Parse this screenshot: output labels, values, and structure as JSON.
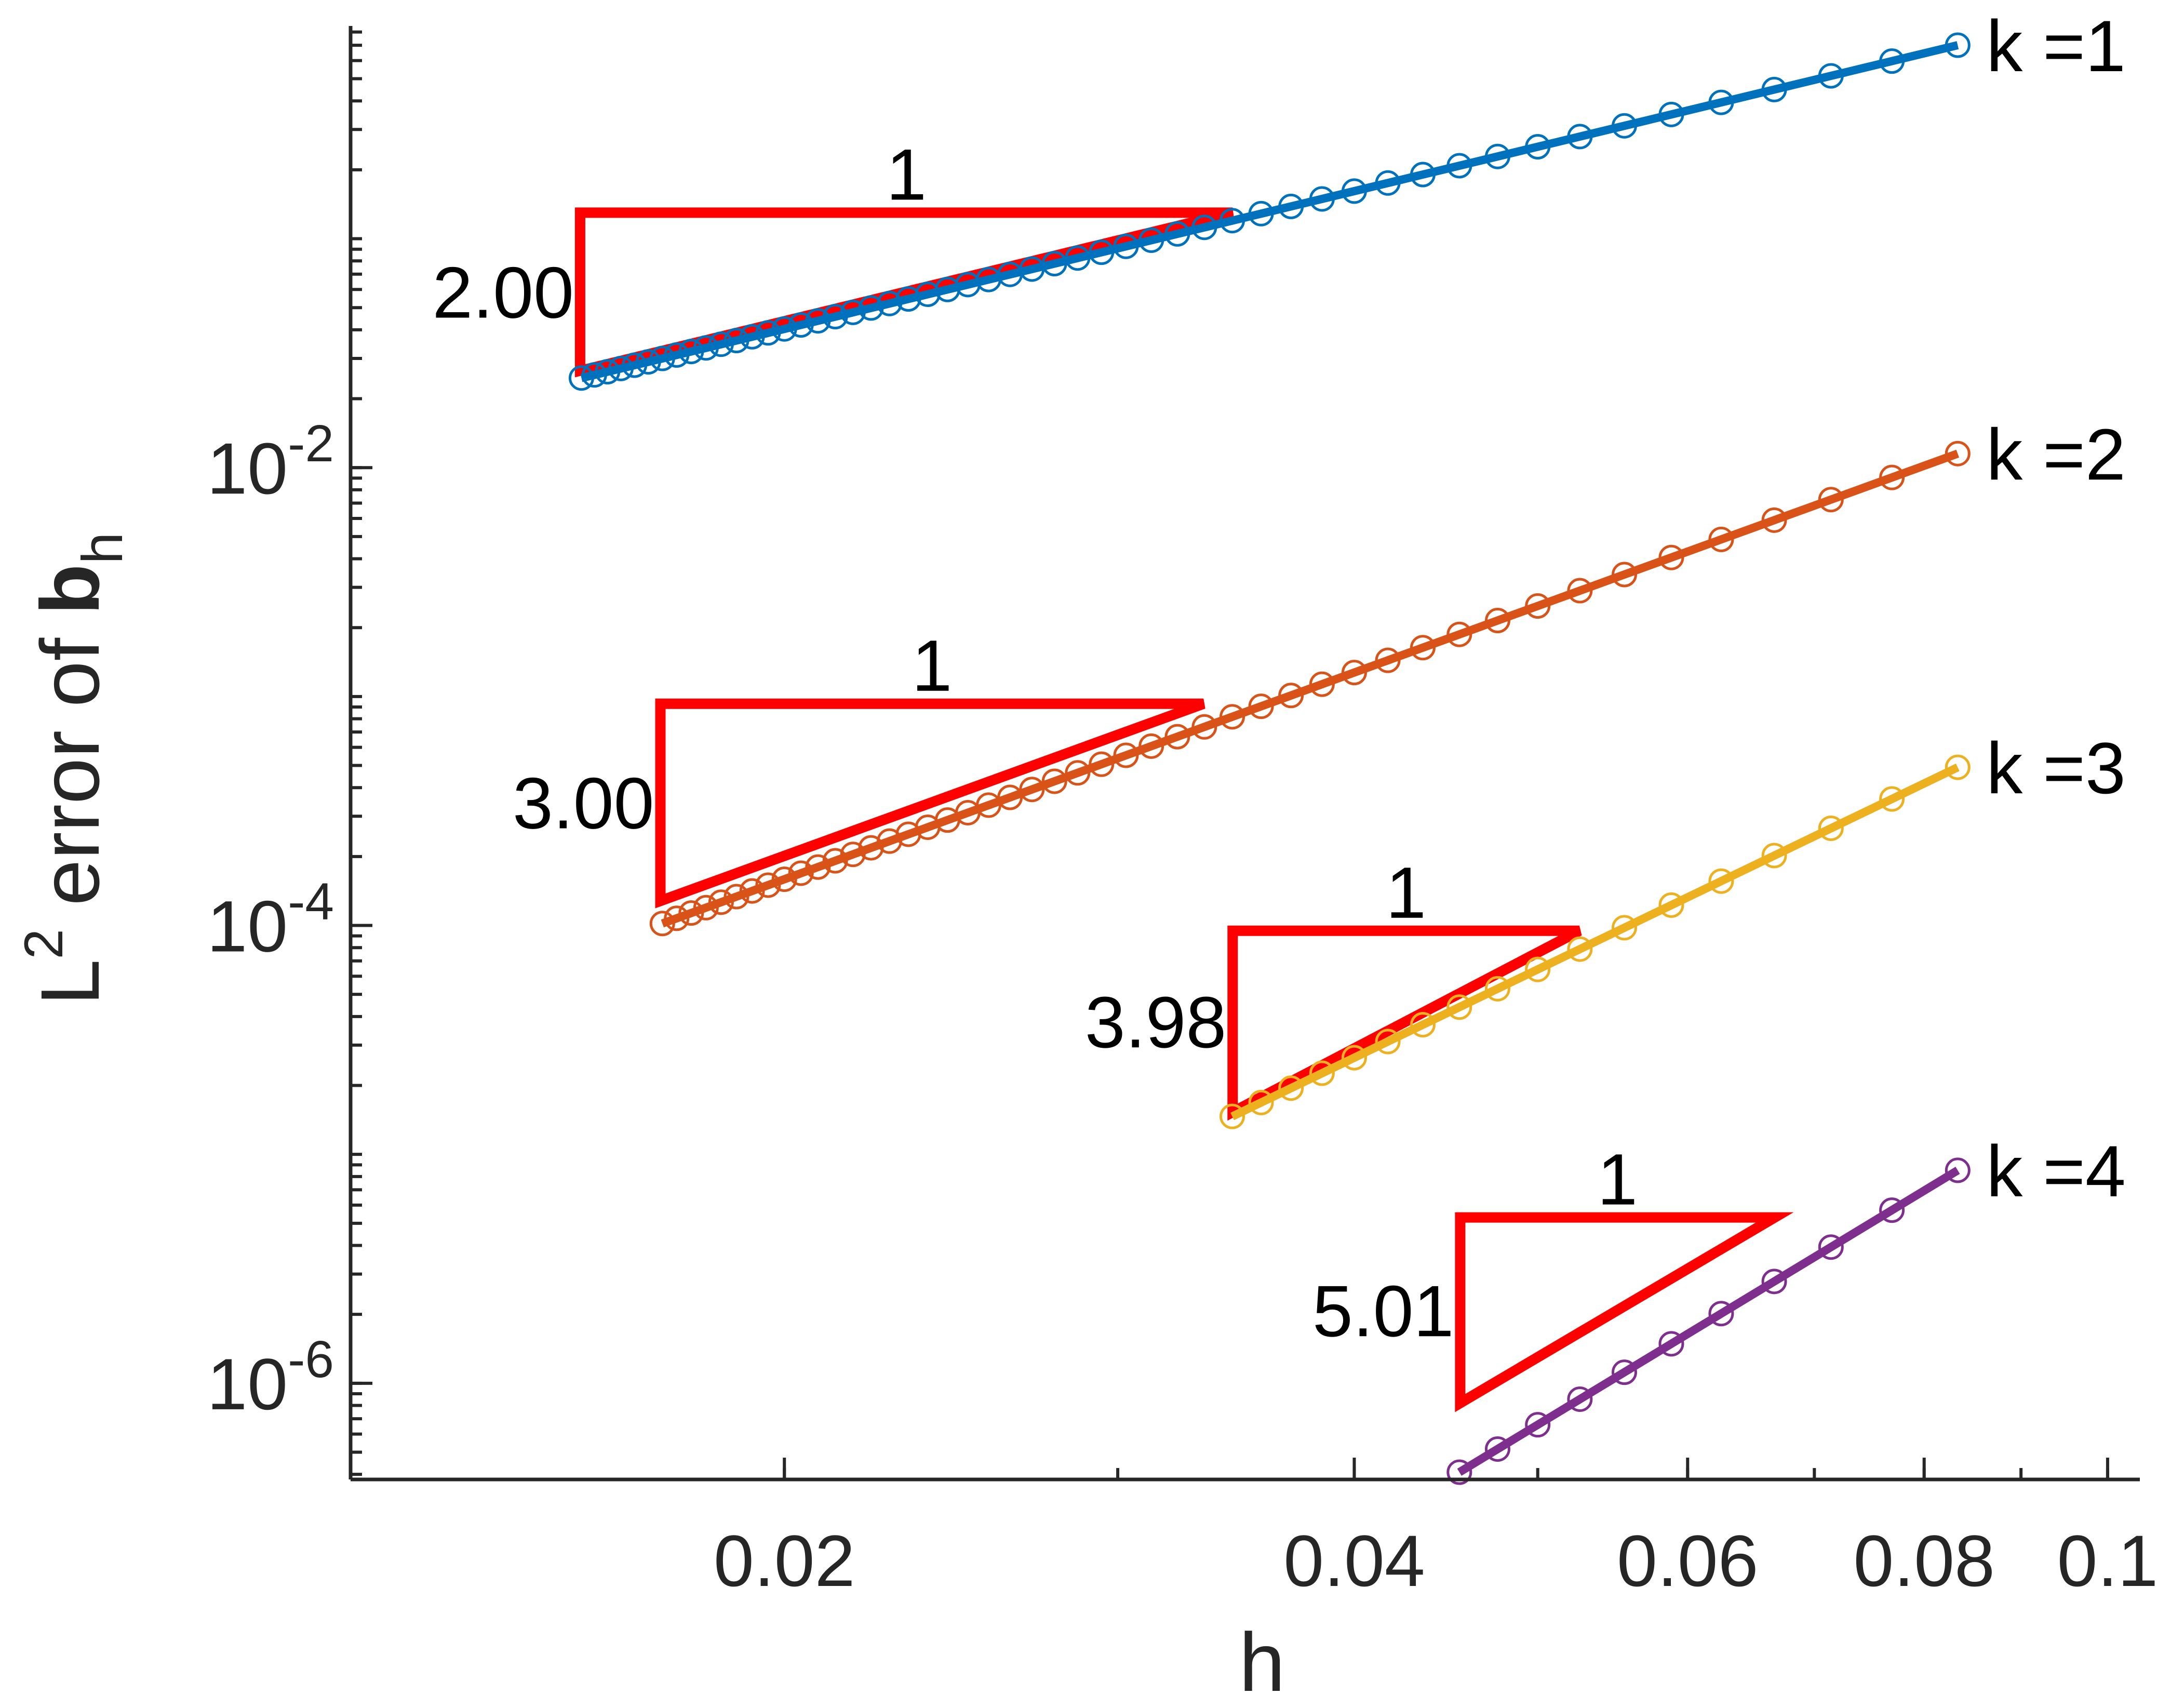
{
  "chart_data": {
    "type": "line",
    "xscale": "log",
    "yscale": "log",
    "xlabel": "h",
    "ylabel": {
      "prefix": "L",
      "superscript": "2",
      "middle": " error of ",
      "bold": "b",
      "subscript": "h"
    },
    "xlim": [
      0.0118,
      0.104
    ],
    "ylim": [
      3.8e-07,
      0.85
    ],
    "xticks": [
      {
        "value": 0.02,
        "label": "0.02"
      },
      {
        "value": 0.04,
        "label": "0.04"
      },
      {
        "value": 0.06,
        "label": "0.06"
      },
      {
        "value": 0.08,
        "label": "0.08"
      },
      {
        "value": 0.1,
        "label": "0.1"
      }
    ],
    "yticks": [
      {
        "value": 0.01,
        "base": "10",
        "exp": "-2"
      },
      {
        "value": 0.0001,
        "base": "10",
        "exp": "-4"
      },
      {
        "value": 1e-06,
        "base": "10",
        "exp": "-6"
      }
    ],
    "series": [
      {
        "name": "k =1",
        "color": "#0072BD",
        "h_max": 0.0833,
        "e_max": 0.7,
        "h_min": 0.0156,
        "rate": 2.0
      },
      {
        "name": "k =2",
        "color": "#D95319",
        "h_max": 0.0833,
        "e_max": 0.0115,
        "h_min": 0.0172,
        "rate": 3.0
      },
      {
        "name": "k =3",
        "color": "#EDB120",
        "h_max": 0.0833,
        "e_max": 0.00049,
        "h_min": 0.0345,
        "rate": 3.98
      },
      {
        "name": "k =4",
        "color": "#7E2F8E",
        "h_max": 0.0833,
        "e_max": 8.5e-06,
        "h_min": 0.0455,
        "rate": 5.01
      }
    ],
    "slope_triangles": [
      {
        "run_label": "1",
        "rate_label": "2.00",
        "x1": 0.0156,
        "x2": 0.0345,
        "y_low": 0.0265,
        "y_high": 0.13,
        "color": "#FF0000"
      },
      {
        "run_label": "1",
        "rate_label": "3.00",
        "x1": 0.0172,
        "x2": 0.0333,
        "y_low": 0.000128,
        "y_high": 0.00093,
        "color": "#FF0000"
      },
      {
        "run_label": "1",
        "rate_label": "3.98",
        "x1": 0.0345,
        "x2": 0.0526,
        "y_low": 1.53e-05,
        "y_high": 9.48e-05,
        "color": "#FF0000"
      },
      {
        "run_label": "1",
        "rate_label": "5.01",
        "x1": 0.0455,
        "x2": 0.0667,
        "y_low": 8.2e-07,
        "y_high": 5.3e-06,
        "color": "#FF0000"
      }
    ]
  }
}
